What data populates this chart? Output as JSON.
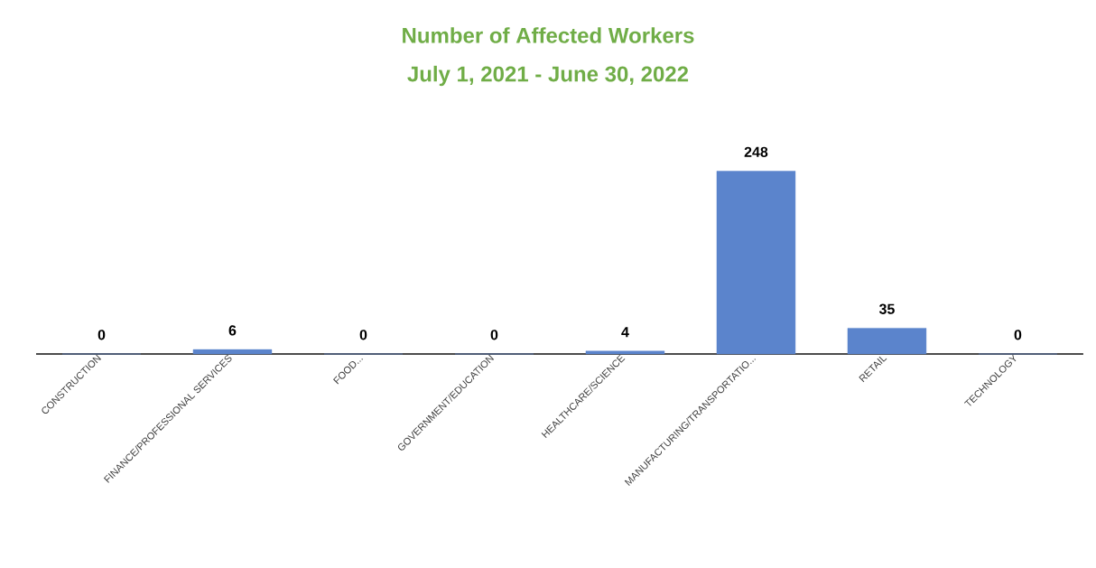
{
  "chart_data": {
    "type": "bar",
    "title": "Number of Affected Workers",
    "subtitle": "July 1, 2021 - June 30, 2022",
    "categories": [
      "CONSTRUCTION",
      "FINANCE/PROFESSIONAL SERVICES",
      "FOOD...",
      "GOVERNMENT/EDUCATION",
      "HEALTHCARE/SCIENCE",
      "MANUFACTURING/TRANSPORTATIO...",
      "RETAIL",
      "TECHNOLOGY"
    ],
    "values": [
      0,
      6,
      0,
      0,
      4,
      248,
      35,
      0
    ],
    "value_labels": [
      "0",
      "6",
      "0",
      "0",
      "4",
      "248",
      "35",
      "0"
    ],
    "color": "#5b84cc",
    "tick_labels": "x"
  }
}
